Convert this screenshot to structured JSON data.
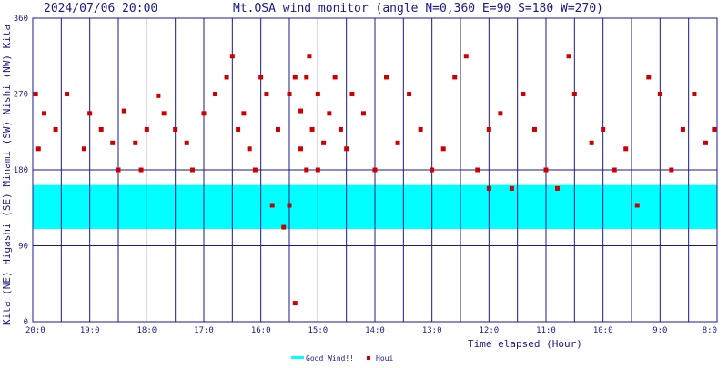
{
  "header": {
    "timestamp": "2024/07/06 20:00",
    "title": "Mt.OSA wind monitor (angle N=0,360 E=90 S=180 W=270)"
  },
  "side_label": "Kita (NE) Higashi (SE) Minami (SW) Nishi (NW) Kita",
  "colors": {
    "axis": "#1a1a8c",
    "good_band": "#00ffff",
    "points": "#cc0000"
  },
  "legend": {
    "good_wind": "Good Wind!!",
    "houi": "Houi"
  },
  "chart_data": {
    "type": "scatter",
    "xlabel": "Time elapsed (Hour)",
    "ylabel": "Kita (NE) Higashi (SE) Minami (SW) Nishi (NW) Kita",
    "x_tick_labels": [
      "20:0",
      "19:0",
      "18:0",
      "17:0",
      "16:0",
      "15:0",
      "14:0",
      "13:0",
      "12:0",
      "11:0",
      "10:0",
      "9:0",
      "8:0"
    ],
    "xlim_hours_elapsed": [
      0,
      12
    ],
    "x_reversed_display": true,
    "y_ticks": [
      0,
      90,
      180,
      270,
      360
    ],
    "ylim": [
      0,
      360
    ],
    "good_wind_range": [
      110,
      162
    ],
    "minor_gridlines_every_hours": 0.5,
    "series": [
      {
        "name": "Houi",
        "note": "hours elapsed from 20:00 (x) vs wind direction degrees (y)",
        "x": [
          0.05,
          0.1,
          0.2,
          0.4,
          0.6,
          0.9,
          1.0,
          1.2,
          1.4,
          1.5,
          1.6,
          1.8,
          1.9,
          2.0,
          2.2,
          2.3,
          2.5,
          2.7,
          2.8,
          3.0,
          3.2,
          3.4,
          3.5,
          3.6,
          3.7,
          3.8,
          3.9,
          4.0,
          4.1,
          4.2,
          4.3,
          4.4,
          4.5,
          4.5,
          4.6,
          4.6,
          4.7,
          4.7,
          4.8,
          4.8,
          4.85,
          4.9,
          5.0,
          5.0,
          5.1,
          5.2,
          5.3,
          5.4,
          5.5,
          5.6,
          5.8,
          6.0,
          6.2,
          6.4,
          6.6,
          6.8,
          7.0,
          7.2,
          7.4,
          7.6,
          7.8,
          8.0,
          8.0,
          8.2,
          8.4,
          8.6,
          8.8,
          9.0,
          9.2,
          9.4,
          9.5,
          9.8,
          10.0,
          10.2,
          10.4,
          10.6,
          10.8,
          11.0,
          11.2,
          11.4,
          11.6,
          11.8,
          11.95
        ],
        "y": [
          270,
          205,
          247,
          228,
          270,
          205,
          247,
          228,
          212,
          180,
          250,
          212,
          180,
          228,
          268,
          247,
          228,
          212,
          180,
          247,
          270,
          290,
          315,
          228,
          247,
          205,
          180,
          290,
          270,
          138,
          228,
          112,
          138,
          270,
          290,
          22,
          250,
          205,
          180,
          290,
          315,
          228,
          180,
          270,
          212,
          247,
          290,
          228,
          205,
          270,
          247,
          180,
          290,
          212,
          270,
          228,
          180,
          205,
          290,
          315,
          180,
          158,
          228,
          247,
          158,
          270,
          228,
          180,
          158,
          315,
          270,
          212,
          228,
          180,
          205,
          138,
          290,
          270,
          180,
          228,
          270,
          212,
          228
        ]
      }
    ]
  }
}
